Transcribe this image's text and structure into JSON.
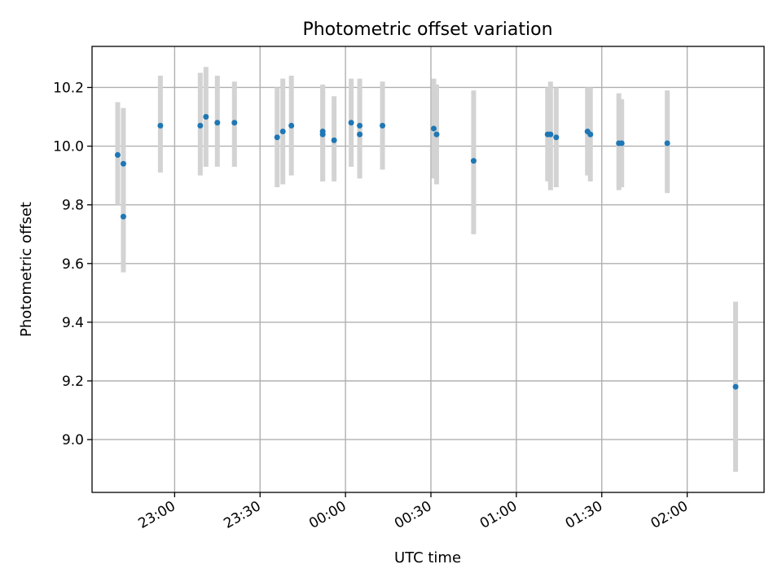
{
  "chart_data": {
    "type": "scatter",
    "title": "Photometric offset variation",
    "xlabel": "UTC time",
    "ylabel": "Photometric offset",
    "xlim": [
      "22:31",
      "02:27"
    ],
    "ylim": [
      8.82,
      10.34
    ],
    "grid": true,
    "x_ticks": [
      "23:00",
      "23:30",
      "00:00",
      "00:30",
      "01:00",
      "01:30",
      "02:00"
    ],
    "y_ticks": [
      9.0,
      9.2,
      9.4,
      9.6,
      9.8,
      10.0,
      10.2
    ],
    "colors": {
      "point": "#1f77b4",
      "errorbar": "#d3d3d3"
    },
    "points": [
      {
        "x": "22:40",
        "y": 9.97,
        "err_low": 9.8,
        "err_high": 10.15
      },
      {
        "x": "22:42",
        "y": 9.76,
        "err_low": 9.57,
        "err_high": 9.95
      },
      {
        "x": "22:42",
        "y": 9.94,
        "err_low": 9.75,
        "err_high": 10.13
      },
      {
        "x": "22:55",
        "y": 10.07,
        "err_low": 9.91,
        "err_high": 10.24
      },
      {
        "x": "23:09",
        "y": 10.07,
        "err_low": 9.9,
        "err_high": 10.25
      },
      {
        "x": "23:11",
        "y": 10.1,
        "err_low": 9.93,
        "err_high": 10.27
      },
      {
        "x": "23:15",
        "y": 10.08,
        "err_low": 9.93,
        "err_high": 10.24
      },
      {
        "x": "23:21",
        "y": 10.08,
        "err_low": 9.93,
        "err_high": 10.22
      },
      {
        "x": "23:36",
        "y": 10.03,
        "err_low": 9.86,
        "err_high": 10.2
      },
      {
        "x": "23:38",
        "y": 10.05,
        "err_low": 9.87,
        "err_high": 10.23
      },
      {
        "x": "23:41",
        "y": 10.07,
        "err_low": 9.9,
        "err_high": 10.24
      },
      {
        "x": "23:52",
        "y": 10.04,
        "err_low": 9.88,
        "err_high": 10.2
      },
      {
        "x": "23:52",
        "y": 10.05,
        "err_low": 9.88,
        "err_high": 10.21
      },
      {
        "x": "23:56",
        "y": 10.02,
        "err_low": 9.88,
        "err_high": 10.17
      },
      {
        "x": "00:02",
        "y": 10.08,
        "err_low": 9.93,
        "err_high": 10.23
      },
      {
        "x": "00:05",
        "y": 10.07,
        "err_low": 9.89,
        "err_high": 10.23
      },
      {
        "x": "00:05",
        "y": 10.04,
        "err_low": 9.89,
        "err_high": 10.2
      },
      {
        "x": "00:13",
        "y": 10.07,
        "err_low": 9.92,
        "err_high": 10.22
      },
      {
        "x": "00:31",
        "y": 10.06,
        "err_low": 9.89,
        "err_high": 10.23
      },
      {
        "x": "00:32",
        "y": 10.04,
        "err_low": 9.87,
        "err_high": 10.21
      },
      {
        "x": "00:45",
        "y": 9.95,
        "err_low": 9.7,
        "err_high": 10.19
      },
      {
        "x": "01:11",
        "y": 10.04,
        "err_low": 9.88,
        "err_high": 10.2
      },
      {
        "x": "01:12",
        "y": 10.04,
        "err_low": 9.85,
        "err_high": 10.22
      },
      {
        "x": "01:14",
        "y": 10.03,
        "err_low": 9.86,
        "err_high": 10.2
      },
      {
        "x": "01:25",
        "y": 10.05,
        "err_low": 9.9,
        "err_high": 10.2
      },
      {
        "x": "01:26",
        "y": 10.04,
        "err_low": 9.88,
        "err_high": 10.2
      },
      {
        "x": "01:36",
        "y": 10.01,
        "err_low": 9.85,
        "err_high": 10.18
      },
      {
        "x": "01:37",
        "y": 10.01,
        "err_low": 9.86,
        "err_high": 10.16
      },
      {
        "x": "01:53",
        "y": 10.01,
        "err_low": 9.84,
        "err_high": 10.19
      },
      {
        "x": "02:17",
        "y": 9.18,
        "err_low": 8.89,
        "err_high": 9.47
      }
    ]
  }
}
